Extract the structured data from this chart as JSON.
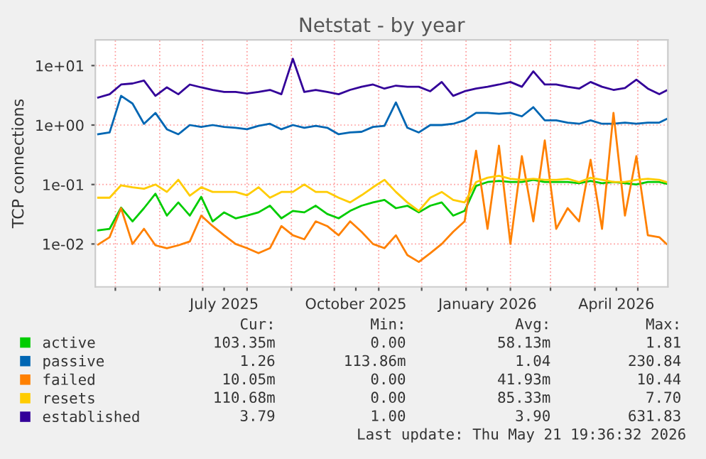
{
  "chart_data": {
    "type": "line",
    "title": "Netstat - by year",
    "ylabel": "TCP connections",
    "log": "y",
    "grid": true,
    "legend": "bottom",
    "line_style": "solid",
    "marker": "none",
    "x": [
      "2025-04-19",
      "2025-04-27",
      "2025-05-05",
      "2025-05-13",
      "2025-05-21",
      "2025-05-29",
      "2025-06-06",
      "2025-06-14",
      "2025-06-22",
      "2025-06-30",
      "2025-07-08",
      "2025-07-16",
      "2025-07-24",
      "2025-08-01",
      "2025-08-09",
      "2025-08-17",
      "2025-08-25",
      "2025-09-02",
      "2025-09-10",
      "2025-09-18",
      "2025-09-26",
      "2025-10-04",
      "2025-10-12",
      "2025-10-20",
      "2025-10-28",
      "2025-11-05",
      "2025-11-13",
      "2025-11-21",
      "2025-11-29",
      "2025-12-07",
      "2025-12-15",
      "2025-12-23",
      "2025-12-31",
      "2026-01-08",
      "2026-01-16",
      "2026-01-24",
      "2026-02-01",
      "2026-02-09",
      "2026-02-17",
      "2026-02-25",
      "2026-03-05",
      "2026-03-13",
      "2026-03-21",
      "2026-03-29",
      "2026-04-06",
      "2026-04-14",
      "2026-04-22",
      "2026-04-30",
      "2026-05-08",
      "2026-05-16",
      "2026-05-21"
    ],
    "series": [
      {
        "name": "active",
        "color": "#00cc00",
        "values": [
          0.017,
          0.018,
          0.041,
          0.024,
          0.04,
          0.07,
          0.03,
          0.05,
          0.03,
          0.062,
          0.024,
          0.034,
          0.027,
          0.03,
          0.034,
          0.044,
          0.027,
          0.036,
          0.034,
          0.044,
          0.032,
          0.027,
          0.036,
          0.044,
          0.05,
          0.055,
          0.04,
          0.044,
          0.034,
          0.044,
          0.05,
          0.03,
          0.036,
          0.095,
          0.11,
          0.115,
          0.11,
          0.11,
          0.12,
          0.11,
          0.11,
          0.11,
          0.105,
          0.115,
          0.105,
          0.11,
          0.105,
          0.1,
          0.11,
          0.11,
          0.103
        ]
      },
      {
        "name": "passive",
        "color": "#0066b3",
        "values": [
          0.7,
          0.75,
          3.1,
          2.3,
          1.05,
          1.6,
          0.85,
          0.7,
          1.0,
          0.93,
          1.0,
          0.93,
          0.9,
          0.85,
          0.97,
          1.05,
          0.85,
          1.0,
          0.9,
          0.97,
          0.9,
          0.7,
          0.75,
          0.77,
          0.93,
          0.97,
          2.4,
          0.9,
          0.75,
          1.0,
          1.0,
          1.05,
          1.2,
          1.6,
          1.6,
          1.55,
          1.6,
          1.4,
          2.0,
          1.2,
          1.2,
          1.1,
          1.05,
          1.2,
          1.05,
          1.05,
          1.1,
          1.05,
          1.1,
          1.1,
          1.26
        ]
      },
      {
        "name": "failed",
        "color": "#ff8000",
        "values": [
          0.0098,
          0.013,
          0.04,
          0.01,
          0.018,
          0.0095,
          0.0085,
          0.0095,
          0.011,
          0.03,
          0.02,
          0.014,
          0.01,
          0.0085,
          0.007,
          0.0085,
          0.02,
          0.014,
          0.012,
          0.024,
          0.02,
          0.014,
          0.024,
          0.016,
          0.01,
          0.0085,
          0.014,
          0.0065,
          0.005,
          0.007,
          0.01,
          0.016,
          0.024,
          0.37,
          0.018,
          0.45,
          0.01,
          0.3,
          0.024,
          0.55,
          0.018,
          0.04,
          0.024,
          0.26,
          0.018,
          1.6,
          0.03,
          0.3,
          0.014,
          0.013,
          0.01
        ]
      },
      {
        "name": "resets",
        "color": "#ffcc00",
        "values": [
          0.06,
          0.06,
          0.097,
          0.09,
          0.085,
          0.1,
          0.075,
          0.12,
          0.065,
          0.09,
          0.075,
          0.075,
          0.075,
          0.066,
          0.09,
          0.06,
          0.075,
          0.075,
          0.1,
          0.075,
          0.075,
          0.06,
          0.05,
          0.066,
          0.09,
          0.12,
          0.075,
          0.05,
          0.036,
          0.06,
          0.075,
          0.055,
          0.05,
          0.11,
          0.13,
          0.14,
          0.125,
          0.12,
          0.125,
          0.12,
          0.12,
          0.125,
          0.11,
          0.13,
          0.12,
          0.11,
          0.11,
          0.12,
          0.125,
          0.12,
          0.11
        ]
      },
      {
        "name": "established",
        "color": "#330099",
        "values": [
          2.9,
          3.3,
          4.8,
          5.0,
          5.6,
          3.1,
          4.3,
          3.3,
          4.8,
          4.3,
          3.9,
          3.6,
          3.6,
          3.4,
          3.6,
          3.9,
          3.3,
          13,
          3.6,
          3.9,
          3.6,
          3.3,
          3.9,
          4.4,
          4.8,
          4.1,
          4.6,
          4.4,
          4.4,
          3.7,
          5.3,
          3.1,
          3.7,
          4.1,
          4.4,
          4.8,
          5.3,
          4.4,
          8.0,
          4.8,
          4.8,
          4.4,
          4.1,
          5.3,
          4.4,
          3.9,
          4.2,
          5.8,
          4.1,
          3.3,
          3.8
        ]
      }
    ],
    "xlim": [
      "2025-04-17",
      "2026-05-22"
    ],
    "xticks": [
      {
        "value": "2025-05-01",
        "label": null
      },
      {
        "value": "2025-06-01",
        "label": null
      },
      {
        "value": "2025-07-01",
        "label": null
      },
      {
        "value": "2025-07-16",
        "label": "July 2025"
      },
      {
        "value": "2025-08-01",
        "label": null
      },
      {
        "value": "2025-09-01",
        "label": null
      },
      {
        "value": "2025-10-01",
        "label": null
      },
      {
        "value": "2025-10-16",
        "label": "October 2025"
      },
      {
        "value": "2025-11-01",
        "label": null
      },
      {
        "value": "2025-12-01",
        "label": null
      },
      {
        "value": "2026-01-01",
        "label": null
      },
      {
        "value": "2026-01-16",
        "label": "January 2026"
      },
      {
        "value": "2026-02-01",
        "label": null
      },
      {
        "value": "2026-03-01",
        "label": null
      },
      {
        "value": "2026-04-01",
        "label": null
      },
      {
        "value": "2026-04-16",
        "label": "April 2026"
      },
      {
        "value": "2026-05-01",
        "label": null
      }
    ],
    "ylim": [
      0.0019,
      27
    ],
    "yticks": [
      {
        "value": 0.01,
        "label": "1e-02"
      },
      {
        "value": 0.1,
        "label": "1e-01"
      },
      {
        "value": 1,
        "label": "1e+00"
      },
      {
        "value": 10,
        "label": "1e+01"
      }
    ],
    "annotations": [
      "Cur:",
      "Min:",
      "Avg:",
      "Max:",
      "103.35m",
      "0.00",
      "58.13m",
      "1.81",
      "1.26",
      "113.86m",
      "1.04",
      "230.84",
      "10.05m",
      "0.00",
      "41.93m",
      "10.44",
      "110.68m",
      "0.00",
      "85.33m",
      "7.70",
      "3.79",
      "1.00",
      "3.90",
      "631.83",
      "Last update: Thu May 21 19:36:32 2026"
    ]
  }
}
